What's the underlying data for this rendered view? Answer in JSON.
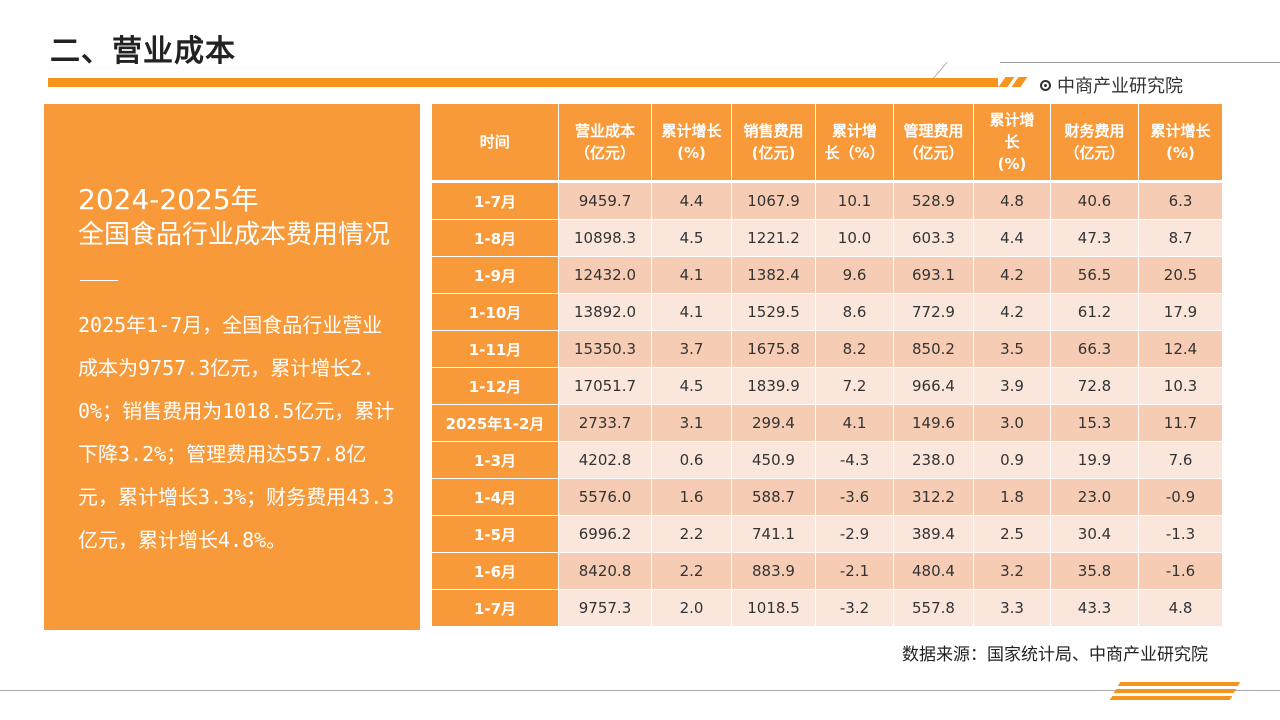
{
  "title": "二、营业成本",
  "brand": "中商产业研究院",
  "left_panel": {
    "year": "2024-2025年",
    "subtitle": "全国食品行业成本费用情况",
    "body": "2025年1-7月，全国食品行业营业成本为9757.3亿元，累计增长2.0%；销售费用为1018.5亿元，累计下降3.2%；管理费用达557.8亿元，累计增长3.3%；财务费用43.3亿元，累计增长4.8%。"
  },
  "table": {
    "headers": [
      "时间",
      "营业成本\n（亿元）",
      "累计增长\n(%)",
      "销售费用\n(亿元)",
      "累计增\n长（%）",
      "管理费用\n（亿元）",
      "累计增\n长\n(%)",
      "财务费用\n（亿元）",
      "累计增长\n(%)"
    ],
    "rows": [
      [
        "1-7月",
        "9459.7",
        "4.4",
        "1067.9",
        "10.1",
        "528.9",
        "4.8",
        "40.6",
        "6.3"
      ],
      [
        "1-8月",
        "10898.3",
        "4.5",
        "1221.2",
        "10.0",
        "603.3",
        "4.4",
        "47.3",
        "8.7"
      ],
      [
        "1-9月",
        "12432.0",
        "4.1",
        "1382.4",
        "9.6",
        "693.1",
        "4.2",
        "56.5",
        "20.5"
      ],
      [
        "1-10月",
        "13892.0",
        "4.1",
        "1529.5",
        "8.6",
        "772.9",
        "4.2",
        "61.2",
        "17.9"
      ],
      [
        "1-11月",
        "15350.3",
        "3.7",
        "1675.8",
        "8.2",
        "850.2",
        "3.5",
        "66.3",
        "12.4"
      ],
      [
        "1-12月",
        "17051.7",
        "4.5",
        "1839.9",
        "7.2",
        "966.4",
        "3.9",
        "72.8",
        "10.3"
      ],
      [
        "2025年1-2月",
        "2733.7",
        "3.1",
        "299.4",
        "4.1",
        "149.6",
        "3.0",
        "15.3",
        "11.7"
      ],
      [
        "1-3月",
        "4202.8",
        "0.6",
        "450.9",
        "-4.3",
        "238.0",
        "0.9",
        "19.9",
        "7.6"
      ],
      [
        "1-4月",
        "5576.0",
        "1.6",
        "588.7",
        "-3.6",
        "312.2",
        "1.8",
        "23.0",
        "-0.9"
      ],
      [
        "1-5月",
        "6996.2",
        "2.2",
        "741.1",
        "-2.9",
        "389.4",
        "2.5",
        "30.4",
        "-1.3"
      ],
      [
        "1-6月",
        "8420.8",
        "2.2",
        "883.9",
        "-2.1",
        "480.4",
        "3.2",
        "35.8",
        "-1.6"
      ],
      [
        "1-7月",
        "9757.3",
        "2.0",
        "1018.5",
        "-3.2",
        "557.8",
        "3.3",
        "43.3",
        "4.8"
      ]
    ]
  },
  "source": "数据来源：国家统计局、中商产业研究院",
  "colors": {
    "accent": "#f89a3a",
    "row_odd": "#f6cdb4",
    "row_even": "#fbe6dc"
  }
}
